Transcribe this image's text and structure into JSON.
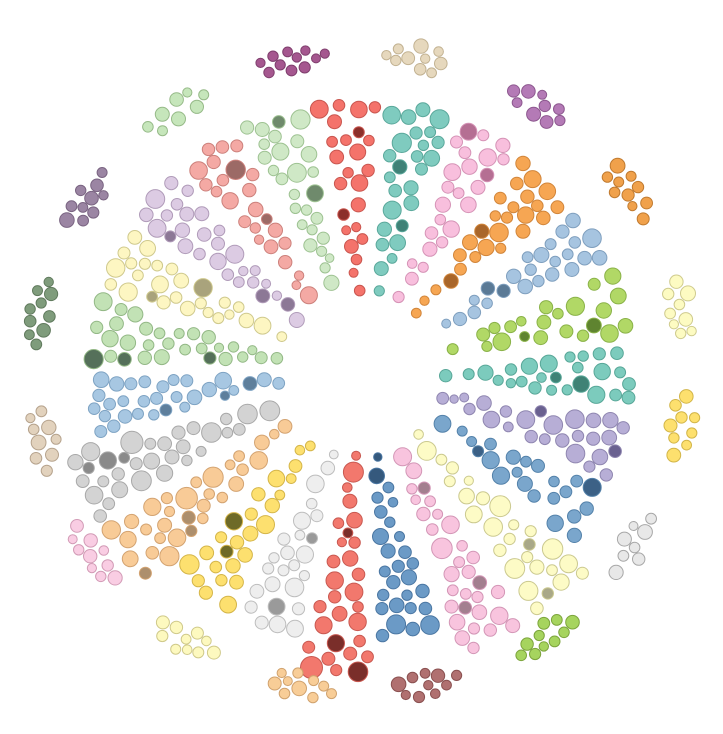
{
  "diagram": {
    "type": "radial-bubble-clusters",
    "background": "#ffffff",
    "inner_groups": [
      {
        "name": "g01",
        "fill": "#f4736b",
        "stroke": "#c9564f",
        "dark": "#8c2f2a",
        "count": 24
      },
      {
        "name": "g02",
        "fill": "#7fcbbf",
        "stroke": "#5aa89b",
        "dark": "#3f8277",
        "count": 26
      },
      {
        "name": "g03",
        "fill": "#f8bfdd",
        "stroke": "#d593b6",
        "dark": "#b56f93",
        "count": 24
      },
      {
        "name": "g04",
        "fill": "#f6a653",
        "stroke": "#d1853a",
        "dark": "#a9662a",
        "count": 26
      },
      {
        "name": "g05",
        "fill": "#a6c4e0",
        "stroke": "#7f9fbe",
        "dark": "#5b7a96",
        "count": 24
      },
      {
        "name": "g06",
        "fill": "#b1d866",
        "stroke": "#8ab248",
        "dark": "#5f8430",
        "count": 22
      },
      {
        "name": "g07",
        "fill": "#7ccbbd",
        "stroke": "#58a798",
        "dark": "#3f8275",
        "count": 26
      },
      {
        "name": "g08",
        "fill": "#b7aed6",
        "stroke": "#8f86b0",
        "dark": "#6a6190",
        "count": 36
      },
      {
        "name": "g09",
        "fill": "#7aa6cc",
        "stroke": "#5482aa",
        "dark": "#3c6186",
        "count": 22
      },
      {
        "name": "g10",
        "fill": "#fdfbc6",
        "stroke": "#cbc98f",
        "dark": "#a9a888",
        "count": 60
      },
      {
        "name": "g11",
        "fill": "#f8c4de",
        "stroke": "#d396b6",
        "dark": "#a37f8f",
        "count": 48
      },
      {
        "name": "g12",
        "fill": "#6b9ac6",
        "stroke": "#4a76a2",
        "dark": "#35597d",
        "count": 34
      },
      {
        "name": "g13",
        "fill": "#f2786d",
        "stroke": "#c85850",
        "dark": "#7a2e2a",
        "count": 44
      },
      {
        "name": "g14",
        "fill": "#eeeeee",
        "stroke": "#bdbdbd",
        "dark": "#9a9a9a",
        "count": 40
      },
      {
        "name": "g15",
        "fill": "#fde06f",
        "stroke": "#d4b549",
        "dark": "#6e6a28",
        "count": 36
      },
      {
        "name": "g16",
        "fill": "#f8cb97",
        "stroke": "#d3a371",
        "dark": "#ad8f6d",
        "count": 44
      },
      {
        "name": "g17",
        "fill": "#d3d3d3",
        "stroke": "#a8a8a8",
        "dark": "#8a8a8a",
        "count": 42
      },
      {
        "name": "g18",
        "fill": "#a7c7e2",
        "stroke": "#7ea3c3",
        "dark": "#5e7f9c",
        "count": 36
      },
      {
        "name": "g19",
        "fill": "#c2e2b5",
        "stroke": "#93b886",
        "dark": "#55705a",
        "count": 40
      },
      {
        "name": "g20",
        "fill": "#fdf6c2",
        "stroke": "#cfc98d",
        "dark": "#a9a37c",
        "count": 28
      },
      {
        "name": "g21",
        "fill": "#dccbe3",
        "stroke": "#b09bb9",
        "dark": "#8c7896",
        "count": 34
      },
      {
        "name": "g22",
        "fill": "#f4a9a4",
        "stroke": "#cc807b",
        "dark": "#9c6a66",
        "count": 34
      },
      {
        "name": "g23",
        "fill": "#cfe8c6",
        "stroke": "#9ec292",
        "dark": "#6f8a6c",
        "count": 32
      }
    ],
    "outer_groups": [
      {
        "name": "o01",
        "fill": "#e6d8bd",
        "stroke": "#c2b292",
        "count": 14
      },
      {
        "name": "o02",
        "fill": "#b47ab6",
        "stroke": "#8d588f",
        "count": 14
      },
      {
        "name": "o03",
        "fill": "#f0a14b",
        "stroke": "#c07a2f",
        "count": 12
      },
      {
        "name": "o04",
        "fill": "#fdfbc2",
        "stroke": "#cfcb8e",
        "count": 10
      },
      {
        "name": "o05",
        "fill": "#fde06e",
        "stroke": "#d2b548",
        "count": 10
      },
      {
        "name": "o06",
        "fill": "#e8e8e8",
        "stroke": "#a8a8a8",
        "count": 8
      },
      {
        "name": "o07",
        "fill": "#a6d45e",
        "stroke": "#7ca43c",
        "count": 14
      },
      {
        "name": "o08",
        "fill": "#b07070",
        "stroke": "#8a5050",
        "count": 18
      },
      {
        "name": "o09",
        "fill": "#f8cd97",
        "stroke": "#d0a26e",
        "count": 12
      },
      {
        "name": "o10",
        "fill": "#fdf9bf",
        "stroke": "#cfc98a",
        "count": 14
      },
      {
        "name": "o11",
        "fill": "#f9cde3",
        "stroke": "#d29bb6",
        "count": 12
      },
      {
        "name": "o12",
        "fill": "#e2d2bd",
        "stroke": "#b6a38d",
        "count": 12
      },
      {
        "name": "o13",
        "fill": "#7f9c7c",
        "stroke": "#607a5d",
        "count": 16
      },
      {
        "name": "o14",
        "fill": "#9b85a3",
        "stroke": "#7a6482",
        "count": 12
      },
      {
        "name": "o15",
        "fill": "#c6e6bb",
        "stroke": "#96ba88",
        "count": 14
      },
      {
        "name": "o16",
        "fill": "#a5578f",
        "stroke": "#7f3e6d",
        "count": 14
      }
    ]
  }
}
